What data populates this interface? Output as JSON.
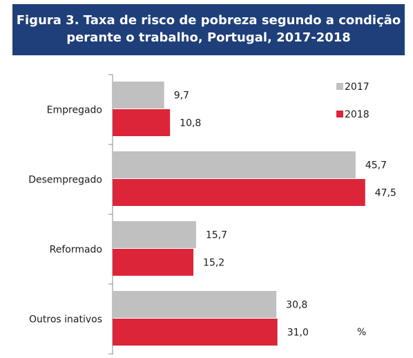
{
  "title": {
    "line1": "Figura 3. Taxa de risco de pobreza segundo a condição",
    "line2": "perante o trabalho, Portugal, 2017-2018"
  },
  "chart_data": {
    "type": "bar",
    "orientation": "horizontal",
    "categories": [
      "Empregado",
      "Desempregado",
      "Reformado",
      "Outros inativos"
    ],
    "series": [
      {
        "name": "2017",
        "values": [
          9.7,
          45.7,
          15.7,
          30.8
        ],
        "labels": [
          "9,7",
          "45,7",
          "15,7",
          "30,8"
        ],
        "color": "#c0c0c0"
      },
      {
        "name": "2018",
        "values": [
          10.8,
          47.5,
          15.2,
          31.0
        ],
        "labels": [
          "10,8",
          "47,5",
          "15,2",
          "31,0"
        ],
        "color": "#dc2539"
      }
    ],
    "unit": "%",
    "xlim": [
      0,
      50
    ],
    "legend_position": "top-right",
    "grid": false
  }
}
